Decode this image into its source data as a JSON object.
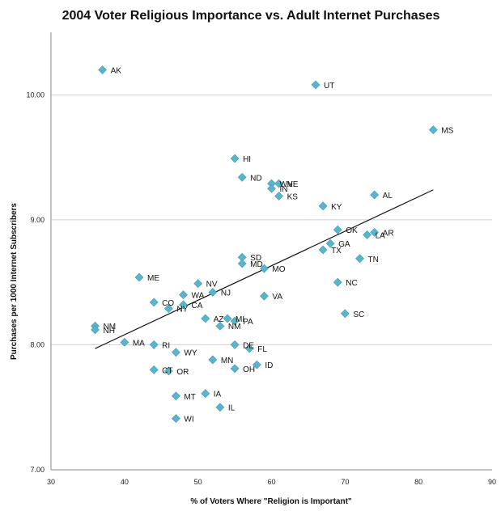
{
  "chart_data": {
    "type": "scatter",
    "title": "2004 Voter Religious Importance vs. Adult Internet Purchases",
    "xlabel": "% of Voters Where \"Religion is Important\"",
    "ylabel": "Purchases per 1000 Internet Subscribers",
    "xlim": [
      30,
      90
    ],
    "ylim": [
      7.0,
      10.5
    ],
    "xticks": [
      "30",
      "40",
      "50",
      "60",
      "70",
      "80",
      "90"
    ],
    "yticks": [
      "7.00",
      "8.00",
      "9.00",
      "10.00"
    ],
    "grid": "horizontal",
    "marker_color": "#5ab4cc",
    "trendline": {
      "x": [
        36,
        82
      ],
      "y": [
        7.97,
        9.24
      ]
    },
    "points": [
      {
        "label": "AK",
        "x": 37,
        "y": 10.2
      },
      {
        "label": "UT",
        "x": 66,
        "y": 10.08
      },
      {
        "label": "MS",
        "x": 82,
        "y": 9.72
      },
      {
        "label": "HI",
        "x": 55,
        "y": 9.49
      },
      {
        "label": "ND",
        "x": 56,
        "y": 9.34
      },
      {
        "label": "NE",
        "x": 61,
        "y": 9.29
      },
      {
        "label": "WV",
        "x": 60,
        "y": 9.29
      },
      {
        "label": "IN",
        "x": 60,
        "y": 9.25
      },
      {
        "label": "KS",
        "x": 61,
        "y": 9.19
      },
      {
        "label": "AL",
        "x": 74,
        "y": 9.2
      },
      {
        "label": "KY",
        "x": 67,
        "y": 9.11
      },
      {
        "label": "OK",
        "x": 69,
        "y": 8.92
      },
      {
        "label": "AR",
        "x": 74,
        "y": 8.9
      },
      {
        "label": "LA",
        "x": 73,
        "y": 8.88
      },
      {
        "label": "GA",
        "x": 68,
        "y": 8.81
      },
      {
        "label": "TX",
        "x": 67,
        "y": 8.76
      },
      {
        "label": "TN",
        "x": 72,
        "y": 8.69
      },
      {
        "label": "SD",
        "x": 56,
        "y": 8.7
      },
      {
        "label": "MD",
        "x": 56,
        "y": 8.65
      },
      {
        "label": "MO",
        "x": 59,
        "y": 8.61
      },
      {
        "label": "ME",
        "x": 42,
        "y": 8.54
      },
      {
        "label": "NC",
        "x": 69,
        "y": 8.5
      },
      {
        "label": "NV",
        "x": 50,
        "y": 8.49
      },
      {
        "label": "NJ",
        "x": 52,
        "y": 8.42
      },
      {
        "label": "WA",
        "x": 48,
        "y": 8.4
      },
      {
        "label": "VA",
        "x": 59,
        "y": 8.39
      },
      {
        "label": "CO",
        "x": 44,
        "y": 8.34
      },
      {
        "label": "CA",
        "x": 48,
        "y": 8.32
      },
      {
        "label": "NY",
        "x": 46,
        "y": 8.29
      },
      {
        "label": "SC",
        "x": 70,
        "y": 8.25
      },
      {
        "label": "AZ",
        "x": 51,
        "y": 8.21
      },
      {
        "label": "MI",
        "x": 54,
        "y": 8.21
      },
      {
        "label": "PA",
        "x": 55,
        "y": 8.19
      },
      {
        "label": "NM",
        "x": 36,
        "y": 8.15
      },
      {
        "label": "NM",
        "x": 53,
        "y": 8.15
      },
      {
        "label": "NH",
        "x": 36,
        "y": 8.12
      },
      {
        "label": "MA",
        "x": 40,
        "y": 8.02
      },
      {
        "label": "RI",
        "x": 44,
        "y": 8.0
      },
      {
        "label": "DE",
        "x": 55,
        "y": 8.0
      },
      {
        "label": "FL",
        "x": 57,
        "y": 7.97
      },
      {
        "label": "WY",
        "x": 47,
        "y": 7.94
      },
      {
        "label": "MN",
        "x": 52,
        "y": 7.88
      },
      {
        "label": "ID",
        "x": 58,
        "y": 7.84
      },
      {
        "label": "OH",
        "x": 55,
        "y": 7.81
      },
      {
        "label": "CT",
        "x": 44,
        "y": 7.8
      },
      {
        "label": "OR",
        "x": 46,
        "y": 7.79
      },
      {
        "label": "IA",
        "x": 51,
        "y": 7.61
      },
      {
        "label": "MT",
        "x": 47,
        "y": 7.59
      },
      {
        "label": "IL",
        "x": 53,
        "y": 7.5
      },
      {
        "label": "WI",
        "x": 47,
        "y": 7.41
      }
    ]
  }
}
